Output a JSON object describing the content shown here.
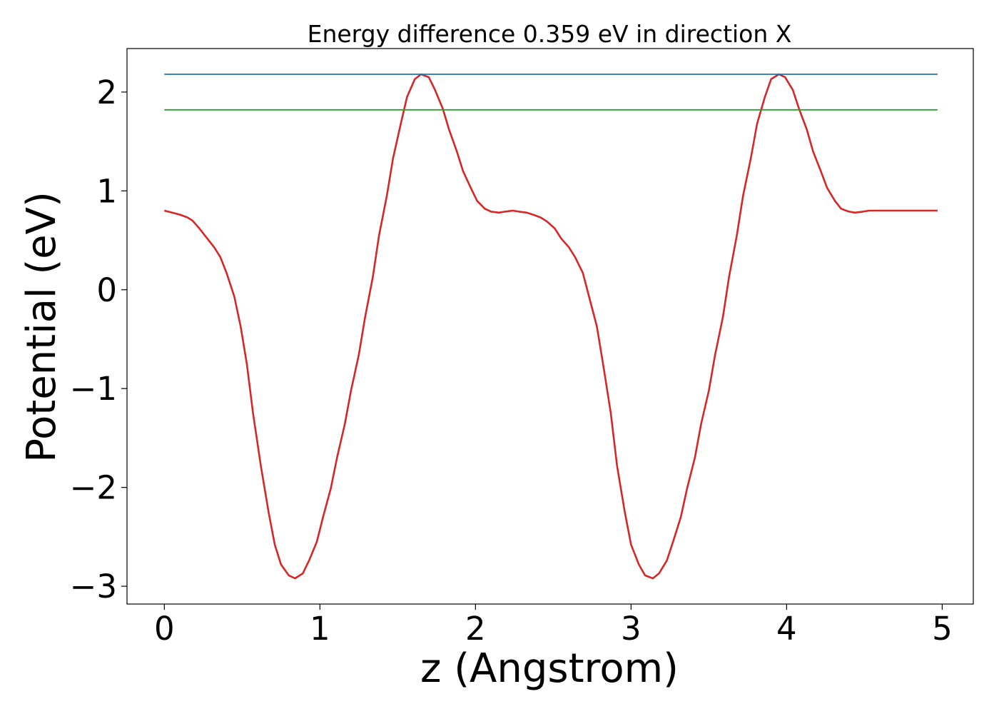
{
  "chart_data": {
    "type": "line",
    "title": "Energy difference 0.359 eV in direction X",
    "xlabel": "z (Angstrom)",
    "ylabel": "Potential (eV)",
    "xlim": [
      -0.24,
      5.2
    ],
    "ylim": [
      -3.18,
      2.44
    ],
    "xticks": [
      {
        "value": 0,
        "label": "0"
      },
      {
        "value": 1,
        "label": "1"
      },
      {
        "value": 2,
        "label": "2"
      },
      {
        "value": 3,
        "label": "3"
      },
      {
        "value": 4,
        "label": "4"
      },
      {
        "value": 5,
        "label": "5"
      }
    ],
    "yticks": [
      {
        "value": -3,
        "label": "−3"
      },
      {
        "value": -2,
        "label": "−2"
      },
      {
        "value": -1,
        "label": "−1"
      },
      {
        "value": 0,
        "label": "0"
      },
      {
        "value": 1,
        "label": "1"
      },
      {
        "value": 2,
        "label": "2"
      }
    ],
    "grid": false,
    "series": [
      {
        "color": "#d62728",
        "x": [
          0,
          0.05,
          0.1,
          0.15,
          0.18,
          0.22,
          0.27,
          0.32,
          0.36,
          0.4,
          0.45,
          0.49,
          0.53,
          0.57,
          0.62,
          0.67,
          0.71,
          0.75,
          0.8,
          0.84,
          0.89,
          0.93,
          0.98,
          1.02,
          1.07,
          1.11,
          1.16,
          1.2,
          1.25,
          1.29,
          1.34,
          1.38,
          1.43,
          1.47,
          1.52,
          1.56,
          1.61,
          1.65,
          1.7,
          1.74,
          1.79,
          1.83,
          1.88,
          1.92,
          1.97,
          2.01,
          2.06,
          2.1,
          2.15,
          2.19,
          2.24,
          2.28,
          2.33,
          2.37,
          2.42,
          2.46,
          2.51,
          2.55,
          2.6,
          2.64,
          2.69,
          2.73,
          2.78,
          2.82,
          2.87,
          2.91,
          2.96,
          3.0,
          3.05,
          3.09,
          3.14,
          3.18,
          3.23,
          3.27,
          3.32,
          3.36,
          3.41,
          3.45,
          3.5,
          3.54,
          3.59,
          3.63,
          3.68,
          3.72,
          3.77,
          3.81,
          3.86,
          3.9,
          3.95,
          3.99,
          4.04,
          4.08,
          4.13,
          4.17,
          4.22,
          4.26,
          4.31,
          4.35,
          4.4,
          4.44,
          4.49,
          4.53,
          4.58,
          4.62,
          4.67,
          4.71,
          4.76,
          4.8,
          4.85,
          4.89,
          4.94,
          4.97
        ],
        "y": [
          0.8,
          0.78,
          0.76,
          0.73,
          0.7,
          0.63,
          0.53,
          0.43,
          0.33,
          0.17,
          -0.07,
          -0.37,
          -0.75,
          -1.25,
          -1.78,
          -2.25,
          -2.58,
          -2.78,
          -2.89,
          -2.92,
          -2.87,
          -2.74,
          -2.55,
          -2.3,
          -2.01,
          -1.7,
          -1.36,
          -1.02,
          -0.66,
          -0.28,
          0.13,
          0.55,
          0.95,
          1.33,
          1.68,
          1.95,
          2.13,
          2.18,
          2.15,
          2.02,
          1.83,
          1.62,
          1.4,
          1.2,
          1.03,
          0.9,
          0.82,
          0.79,
          0.78,
          0.79,
          0.8,
          0.79,
          0.78,
          0.76,
          0.73,
          0.69,
          0.62,
          0.52,
          0.43,
          0.33,
          0.17,
          -0.07,
          -0.37,
          -0.75,
          -1.25,
          -1.78,
          -2.25,
          -2.58,
          -2.78,
          -2.89,
          -2.92,
          -2.87,
          -2.74,
          -2.55,
          -2.3,
          -2.01,
          -1.7,
          -1.36,
          -1.02,
          -0.66,
          -0.28,
          0.13,
          0.55,
          0.95,
          1.33,
          1.68,
          1.95,
          2.13,
          2.18,
          2.15,
          2.02,
          1.83,
          1.62,
          1.4,
          1.2,
          1.03,
          0.9,
          0.82,
          0.79,
          0.78,
          0.79,
          0.8,
          0.8,
          0.8,
          0.8,
          0.8,
          0.8,
          0.8,
          0.8,
          0.8,
          0.8,
          0.8
        ]
      },
      {
        "color": "#1f77b4",
        "x": [
          0,
          4.97
        ],
        "y": [
          2.18,
          2.18
        ]
      },
      {
        "color": "#2ca02c",
        "x": [
          0,
          4.97
        ],
        "y": [
          1.82,
          1.82
        ]
      }
    ]
  }
}
